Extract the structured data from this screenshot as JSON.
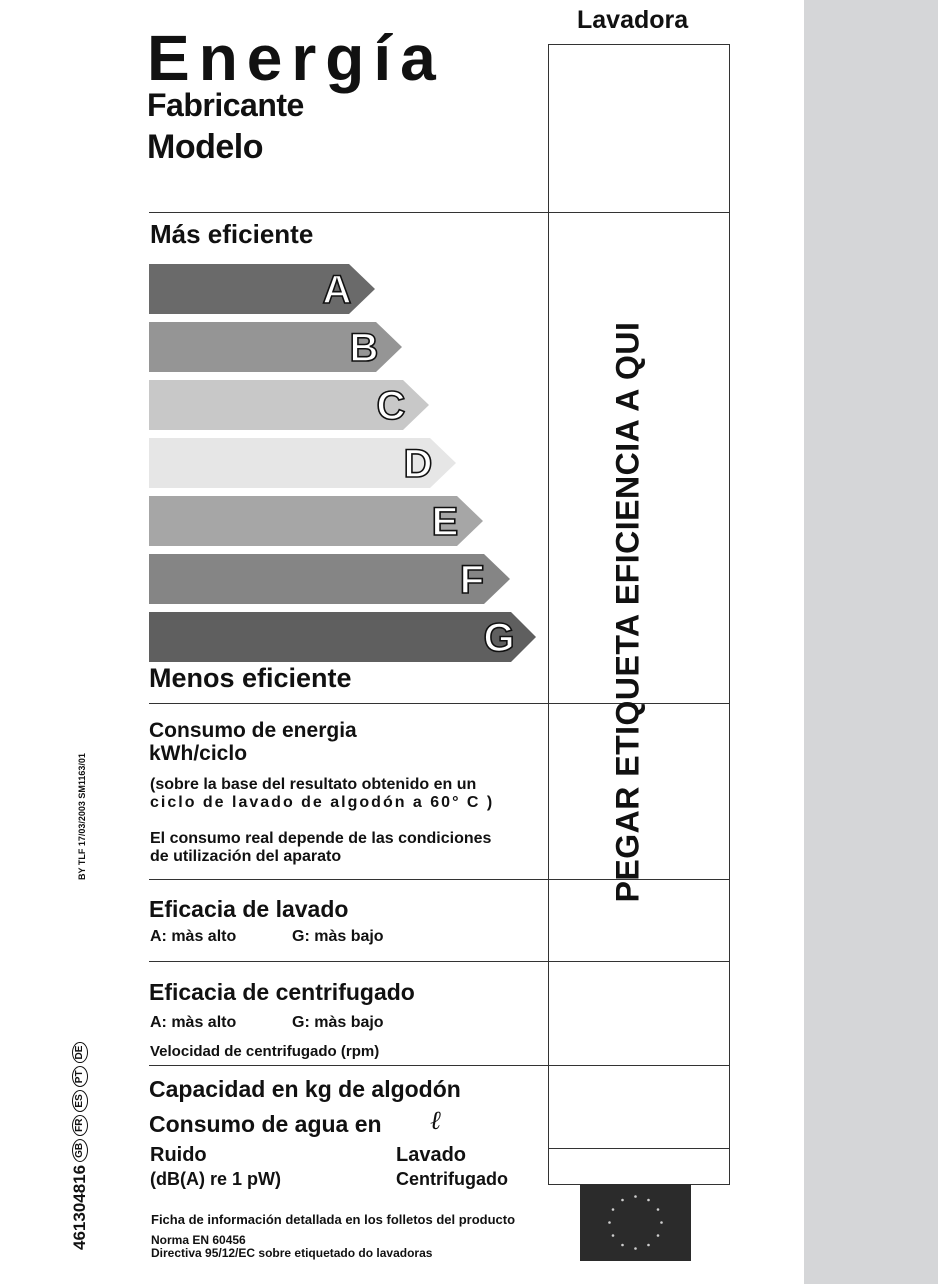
{
  "header": {
    "appliance": "Lavadora",
    "title": "Energía",
    "manufacturer_label": "Fabricante",
    "model_label": "Modelo"
  },
  "scale": {
    "top_label": "Más eficiente",
    "bottom_label": "Menos eficiente",
    "classes": [
      {
        "letter": "A",
        "color": "#6a6a6a"
      },
      {
        "letter": "B",
        "color": "#959595"
      },
      {
        "letter": "C",
        "color": "#c8c8c8"
      },
      {
        "letter": "D",
        "color": "#e6e6e6"
      },
      {
        "letter": "E",
        "color": "#a6a6a6"
      },
      {
        "letter": "F",
        "color": "#858585"
      },
      {
        "letter": "G",
        "color": "#5f5f5f"
      }
    ]
  },
  "sticker": {
    "text": "PEGAR ETIQUETA EFICIENCIA A QUI"
  },
  "energy": {
    "title_line1": "Consumo de energia",
    "title_line2": "kWh/ciclo",
    "note_line1": "(sobre la base del resultato obtenido en un",
    "note_line2": "ciclo de lavado de algodón a 60° C )",
    "real_line1": "El consumo real depende de las condiciones",
    "real_line2": "de utilización del aparato"
  },
  "washing": {
    "title": "Eficacia de lavado",
    "high": "A: màs alto",
    "low": "G: màs bajo"
  },
  "spin": {
    "title": "Eficacia de centrifugado",
    "high": "A: màs alto",
    "low": "G: màs bajo",
    "speed": "Velocidad de centrifugado (rpm)"
  },
  "capacity": {
    "label": "Capacidad en kg de algodón"
  },
  "water": {
    "label": "Consumo de agua en",
    "unit": "ℓ"
  },
  "noise": {
    "label_line1": "Ruido",
    "label_line2": "(dB(A) re 1 pW)",
    "wash": "Lavado",
    "spin": "Centrifugado"
  },
  "footer": {
    "info": "Ficha de información detallada en los folletos del producto",
    "norm": "Norma EN 60456",
    "directive": "Directiva 95/12/EC sobre etiquetado do lavadoras"
  },
  "side": {
    "doc_code": "BY TLF 17/03/2003   SM1163/01",
    "part_number": "461304816",
    "languages": [
      "GB",
      "FR",
      "ES",
      "PT",
      "DE"
    ]
  }
}
